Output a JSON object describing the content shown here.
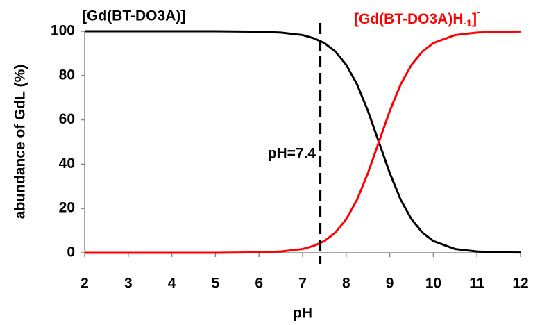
{
  "chart_data": {
    "type": "line",
    "x_label": "pH",
    "y_label": "abundance of GdL  (%)",
    "x": [
      2,
      3,
      4,
      5,
      6,
      6.5,
      7,
      7.25,
      7.5,
      7.75,
      8,
      8.25,
      8.5,
      8.75,
      9,
      9.25,
      9.5,
      9.75,
      10,
      10.5,
      11,
      11.5,
      12
    ],
    "series": [
      {
        "color": "#000000",
        "values": [
          100,
          100,
          100,
          100,
          99.8,
          99.4,
          98.3,
          96.9,
          94.7,
          90.9,
          84.9,
          76.0,
          64.0,
          50,
          36.0,
          24.0,
          15.1,
          9.1,
          5.3,
          1.7,
          0.6,
          0.2,
          0.1
        ],
        "label": {
          "text": "[Gd(BT-DO3A)]"
        }
      },
      {
        "color": "#ff0000",
        "values": [
          0,
          0,
          0,
          0,
          0.2,
          0.6,
          1.7,
          3.1,
          5.3,
          9.1,
          15.1,
          24.0,
          36.0,
          50,
          64.0,
          76.0,
          84.9,
          90.9,
          94.7,
          98.3,
          99.4,
          99.8,
          99.9
        ],
        "label": {
          "text": "[Gd(BT-DO3A)H",
          "sub": "-1",
          "after": "]",
          "sup": "-"
        }
      }
    ],
    "vline": {
      "value": 7.4,
      "label": "pH=7.4"
    },
    "xlim": [
      2,
      12
    ],
    "xticks": [
      2,
      3,
      4,
      5,
      6,
      7,
      8,
      9,
      10,
      11,
      12
    ],
    "ylim": [
      0,
      100
    ],
    "yticks": [
      0,
      20,
      40,
      60,
      80,
      100
    ],
    "grid": false
  }
}
